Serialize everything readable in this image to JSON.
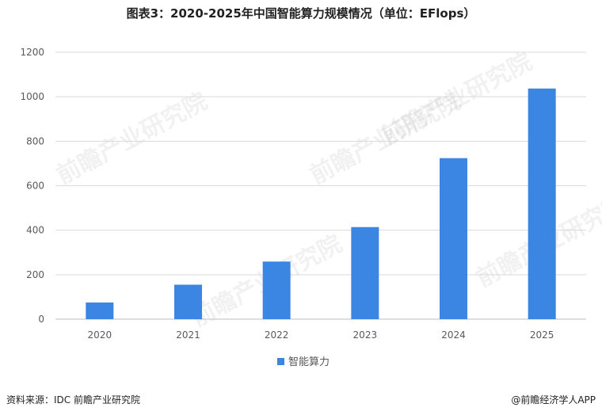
{
  "title": "图表3：2020-2025年中国智能算力规模情况（单位：EFlops）",
  "source": "资料来源：IDC  前瞻产业研究院",
  "brand": "@前瞻经济学人APP",
  "watermark": "前瞻产业研究院",
  "colors": {
    "bar": "#3b86e3",
    "grid": "#d9d9d9",
    "axis": "#bfbfbf",
    "text": "#595959"
  },
  "chart_data": {
    "type": "bar",
    "categories": [
      "2020",
      "2021",
      "2022",
      "2023",
      "2024",
      "2025"
    ],
    "series": [
      {
        "name": "智能算力",
        "values": [
          75,
          155,
          259,
          414,
          724,
          1037
        ]
      }
    ],
    "title": "图表3：2020-2025年中国智能算力规模情况（单位：EFlops）",
    "ylim": [
      0,
      1200
    ],
    "yticks": [
      0,
      200,
      400,
      600,
      800,
      1000,
      1200
    ],
    "grid": true,
    "legend_position": "bottom-center"
  }
}
